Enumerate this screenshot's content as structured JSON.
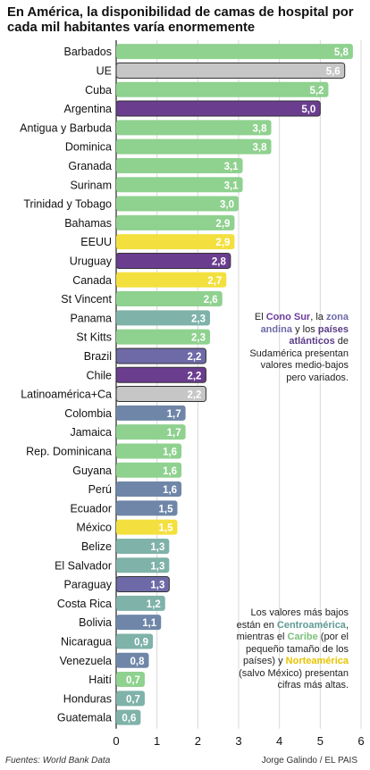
{
  "title": "En América, la disponibilidad de camas de hospital por cada mil habitantes varía enormemente",
  "annotations": {
    "top": [
      "El ",
      "Cono Sur",
      ", la ",
      "zona andina",
      " y los ",
      "países atlánticos",
      " de Sudamérica presentan valores medio-bajos pero variados."
    ],
    "bottom": [
      "Los valores más bajos están en ",
      "Centroamérica",
      ", mientras el ",
      "Caribe",
      " (por el pequeño tamaño de los países) y ",
      "Norteamérica",
      " (salvo México) presentan cifras más altas."
    ]
  },
  "source": "Fuentes: World Bank Data",
  "credit": "Jorge Galindo / EL PAIS",
  "colors": {
    "caribe": "#8fd18f",
    "agregado": "#c6c6c6",
    "cono_sur": "#6a3d8f",
    "norteamerica": "#f3e03f",
    "andina": "#6f86a8",
    "centroamerica": "#7fb2a9",
    "atlantico": "#6e6aa8"
  },
  "chart_data": {
    "type": "bar",
    "orientation": "horizontal",
    "title": "En América, la disponibilidad de camas de hospital por cada mil habitantes varía enormemente",
    "xlabel": "",
    "ylabel": "",
    "xlim": [
      0,
      6
    ],
    "xticks": [
      "0",
      "1",
      "2",
      "3",
      "4",
      "5",
      "6"
    ],
    "grid": true,
    "bars": [
      {
        "label": "Barbados",
        "value": 5.8,
        "value_label": "5,8",
        "group": "caribe"
      },
      {
        "label": "UE",
        "value": 5.6,
        "value_label": "5,6",
        "group": "agregado"
      },
      {
        "label": "Cuba",
        "value": 5.2,
        "value_label": "5,2",
        "group": "caribe"
      },
      {
        "label": "Argentina",
        "value": 5.0,
        "value_label": "5,0",
        "group": "cono_sur"
      },
      {
        "label": "Antigua y Barbuda",
        "value": 3.8,
        "value_label": "3,8",
        "group": "caribe"
      },
      {
        "label": "Dominica",
        "value": 3.8,
        "value_label": "3,8",
        "group": "caribe"
      },
      {
        "label": "Granada",
        "value": 3.1,
        "value_label": "3,1",
        "group": "caribe"
      },
      {
        "label": "Surinam",
        "value": 3.1,
        "value_label": "3,1",
        "group": "caribe"
      },
      {
        "label": "Trinidad y Tobago",
        "value": 3.0,
        "value_label": "3,0",
        "group": "caribe"
      },
      {
        "label": "Bahamas",
        "value": 2.9,
        "value_label": "2,9",
        "group": "caribe"
      },
      {
        "label": "EEUU",
        "value": 2.9,
        "value_label": "2,9",
        "group": "norteamerica"
      },
      {
        "label": "Uruguay",
        "value": 2.8,
        "value_label": "2,8",
        "group": "cono_sur"
      },
      {
        "label": "Canada",
        "value": 2.7,
        "value_label": "2,7",
        "group": "norteamerica"
      },
      {
        "label": "St Vincent",
        "value": 2.6,
        "value_label": "2,6",
        "group": "caribe"
      },
      {
        "label": "Panama",
        "value": 2.3,
        "value_label": "2,3",
        "group": "centroamerica"
      },
      {
        "label": "St Kitts",
        "value": 2.3,
        "value_label": "2,3",
        "group": "caribe"
      },
      {
        "label": "Brazil",
        "value": 2.2,
        "value_label": "2,2",
        "group": "atlantico"
      },
      {
        "label": "Chile",
        "value": 2.2,
        "value_label": "2,2",
        "group": "cono_sur"
      },
      {
        "label": "Latinoamérica+Ca",
        "value": 2.2,
        "value_label": "2,2",
        "group": "agregado"
      },
      {
        "label": "Colombia",
        "value": 1.7,
        "value_label": "1,7",
        "group": "andina"
      },
      {
        "label": "Jamaica",
        "value": 1.7,
        "value_label": "1,7",
        "group": "caribe"
      },
      {
        "label": "Rep. Dominicana",
        "value": 1.6,
        "value_label": "1,6",
        "group": "caribe"
      },
      {
        "label": "Guyana",
        "value": 1.6,
        "value_label": "1,6",
        "group": "caribe"
      },
      {
        "label": "Perú",
        "value": 1.6,
        "value_label": "1,6",
        "group": "andina"
      },
      {
        "label": "Ecuador",
        "value": 1.5,
        "value_label": "1,5",
        "group": "andina"
      },
      {
        "label": "México",
        "value": 1.5,
        "value_label": "1,5",
        "group": "norteamerica"
      },
      {
        "label": "Belize",
        "value": 1.3,
        "value_label": "1,3",
        "group": "centroamerica"
      },
      {
        "label": "El Salvador",
        "value": 1.3,
        "value_label": "1,3",
        "group": "centroamerica"
      },
      {
        "label": "Paraguay",
        "value": 1.3,
        "value_label": "1,3",
        "group": "atlantico"
      },
      {
        "label": "Costa Rica",
        "value": 1.2,
        "value_label": "1,2",
        "group": "centroamerica"
      },
      {
        "label": "Bolivia",
        "value": 1.1,
        "value_label": "1,1",
        "group": "andina"
      },
      {
        "label": "Nicaragua",
        "value": 0.9,
        "value_label": "0,9",
        "group": "centroamerica"
      },
      {
        "label": "Venezuela",
        "value": 0.8,
        "value_label": "0,8",
        "group": "andina"
      },
      {
        "label": "Haití",
        "value": 0.7,
        "value_label": "0,7",
        "group": "caribe"
      },
      {
        "label": "Honduras",
        "value": 0.7,
        "value_label": "0,7",
        "group": "centroamerica"
      },
      {
        "label": "Guatemala",
        "value": 0.6,
        "value_label": "0,6",
        "group": "centroamerica"
      }
    ]
  }
}
